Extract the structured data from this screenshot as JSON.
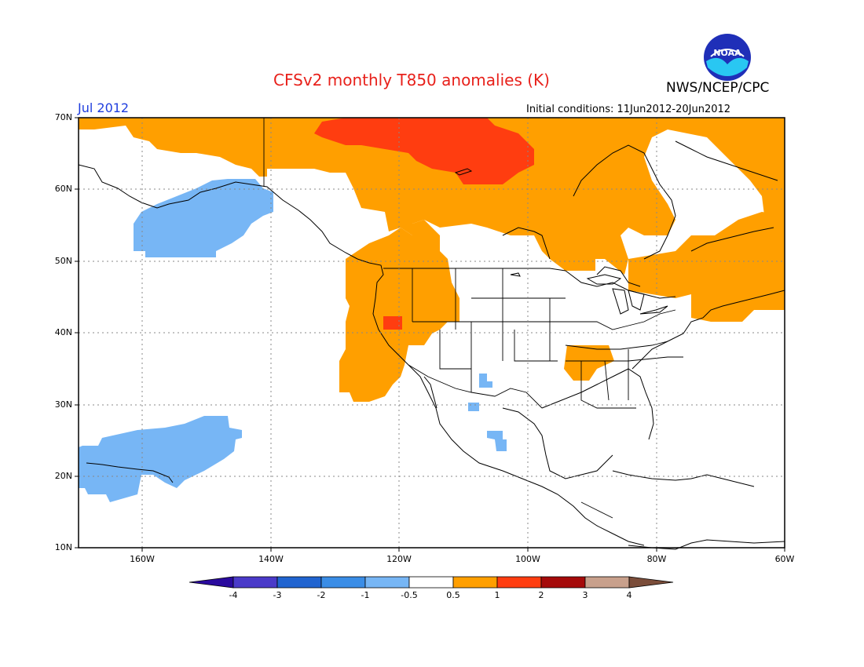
{
  "header": {
    "title": "CFSv2 monthly T850 anomalies (K)",
    "month": "Jul 2012",
    "agency": "NWS/NCEP/CPC",
    "logo_text": "NOAA",
    "initial_conditions": "Initial conditions: 11Jun2012-20Jun2012"
  },
  "map": {
    "lat_labels": [
      "70N",
      "60N",
      "50N",
      "40N",
      "30N",
      "20N",
      "10N"
    ],
    "lon_labels": [
      "160W",
      "140W",
      "120W",
      "100W",
      "80W",
      "60W"
    ],
    "colors": {
      "warm_0_5_to_1": "#ff9f00",
      "warm_1_to_2": "#ff3d10",
      "cool_-1_to_-0_5": "#77b6f5"
    }
  },
  "colorbar": {
    "labels": [
      "-4",
      "-3",
      "-2",
      "-1",
      "-0.5",
      "0.5",
      "1",
      "2",
      "3",
      "4"
    ],
    "colors": [
      "#2a0a9e",
      "#4a3ac9",
      "#2064d0",
      "#3a8de6",
      "#77b6f5",
      "#ffffff",
      "#ff9f00",
      "#ff3d10",
      "#a50a0a",
      "#c8a08c",
      "#7b4d3a"
    ]
  }
}
